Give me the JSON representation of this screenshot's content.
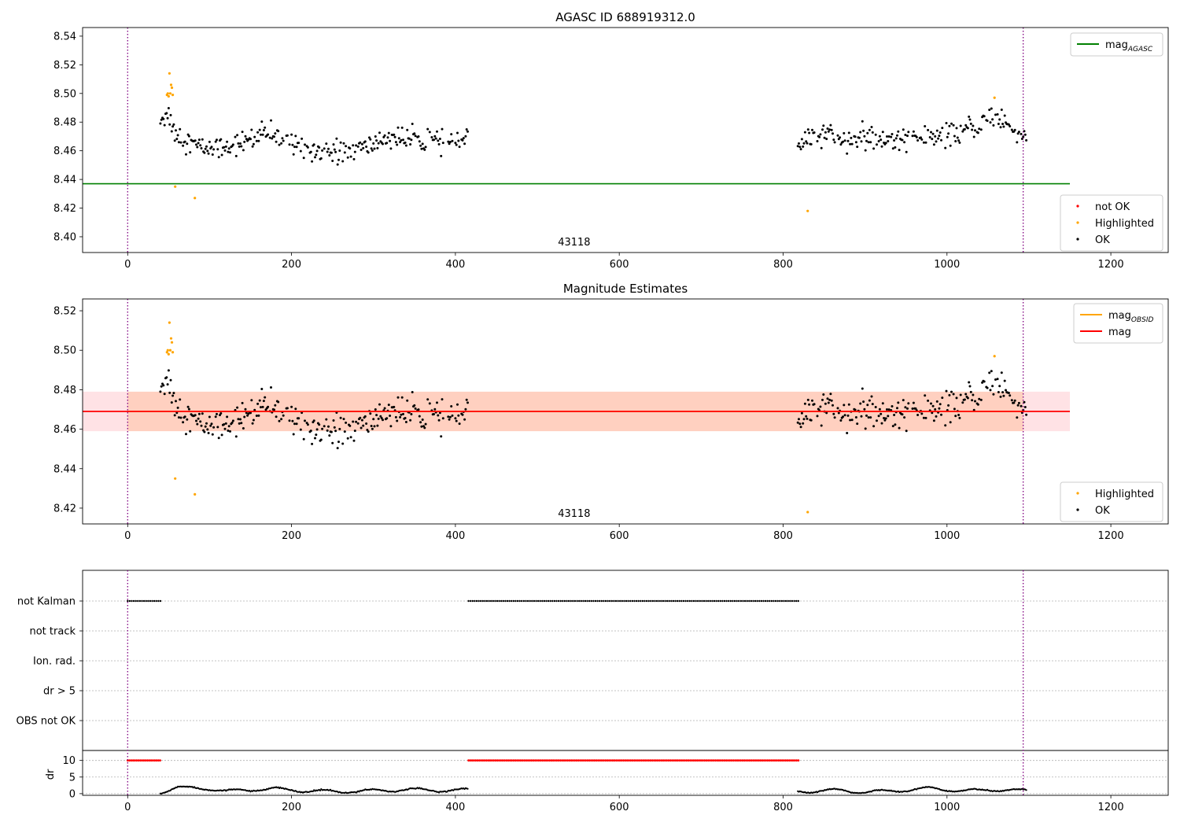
{
  "chart_data": [
    {
      "type": "scatter",
      "title": "AGASC ID 688919312.0",
      "xlim": [
        -55,
        1270
      ],
      "ylim": [
        8.389,
        8.546
      ],
      "xticks": [
        0,
        200,
        400,
        600,
        800,
        1000,
        1200
      ],
      "yticks": [
        8.4,
        8.42,
        8.44,
        8.46,
        8.48,
        8.5,
        8.52,
        8.54
      ],
      "grid": false,
      "obsid_label": "43118",
      "obsid_label_x": 545,
      "vlines": [
        0,
        1093
      ],
      "reference_line": {
        "name": "mag",
        "subscript": "AGASC",
        "y": 8.437,
        "x": [
          -55,
          1150
        ],
        "color": "#008000"
      },
      "legend_upper": {
        "placement": "top-right",
        "entries": [
          {
            "label": "mag",
            "subscript": "AGASC",
            "kind": "line",
            "color": "#008000"
          }
        ]
      },
      "legend_lower": {
        "placement": "bottom-right",
        "entries": [
          {
            "label": "not OK",
            "kind": "marker",
            "color": "#ff0000"
          },
          {
            "label": "Highlighted",
            "kind": "marker",
            "color": "#ffa500"
          },
          {
            "label": "OK",
            "kind": "marker",
            "color": "#000000"
          }
        ]
      },
      "series": [
        {
          "name": "Highlighted",
          "color": "#ffa500",
          "points": [
            [
              48,
              8.499
            ],
            [
              49,
              8.5
            ],
            [
              50,
              8.498
            ],
            [
              51,
              8.514
            ],
            [
              52,
              8.5
            ],
            [
              53,
              8.506
            ],
            [
              54,
              8.504
            ],
            [
              55,
              8.499
            ],
            [
              58,
              8.435
            ],
            [
              82,
              8.427
            ],
            [
              830,
              8.418
            ],
            [
              1058,
              8.497
            ]
          ]
        },
        {
          "name": "OK",
          "color": "#000000",
          "trend": [
            [
              40,
              8.483
            ],
            [
              50,
              8.485
            ],
            [
              58,
              8.472
            ],
            [
              70,
              8.468
            ],
            [
              90,
              8.462
            ],
            [
              110,
              8.462
            ],
            [
              140,
              8.466
            ],
            [
              170,
              8.472
            ],
            [
              200,
              8.466
            ],
            [
              230,
              8.461
            ],
            [
              260,
              8.459
            ],
            [
              290,
              8.462
            ],
            [
              320,
              8.47
            ],
            [
              350,
              8.467
            ],
            [
              380,
              8.466
            ],
            [
              410,
              8.468
            ],
            [
              820,
              8.464
            ],
            [
              850,
              8.472
            ],
            [
              880,
              8.469
            ],
            [
              920,
              8.467
            ],
            [
              960,
              8.47
            ],
            [
              1000,
              8.469
            ],
            [
              1030,
              8.476
            ],
            [
              1060,
              8.484
            ],
            [
              1090,
              8.472
            ]
          ],
          "segments": [
            [
              40,
              415
            ],
            [
              818,
              1097
            ]
          ],
          "scatter": 0.007
        },
        {
          "name": "not OK",
          "color": "#ff0000",
          "points": []
        }
      ]
    },
    {
      "type": "scatter",
      "title": "Magnitude Estimates",
      "xlim": [
        -55,
        1270
      ],
      "ylim": [
        8.412,
        8.526
      ],
      "xticks": [
        0,
        200,
        400,
        600,
        800,
        1000,
        1200
      ],
      "yticks": [
        8.42,
        8.44,
        8.46,
        8.48,
        8.5,
        8.52
      ],
      "grid": false,
      "obsid_label": "43118",
      "obsid_label_x": 545,
      "vlines": [
        0,
        1093
      ],
      "mag_line": {
        "name": "mag",
        "y": 8.469,
        "band": [
          8.459,
          8.479
        ],
        "x": [
          -55,
          1150
        ],
        "color": "#ff0000"
      },
      "obsid_line": {
        "name": "mag",
        "subscript": "OBSID",
        "y": 8.469,
        "band": [
          8.459,
          8.479
        ],
        "segments": [
          [
            0,
            1093
          ]
        ],
        "color": "#ffa500"
      },
      "legend_upper": {
        "placement": "top-right",
        "entries": [
          {
            "label": "mag",
            "subscript": "OBSID",
            "kind": "line",
            "color": "#ffa500"
          },
          {
            "label": "mag",
            "kind": "line",
            "color": "#ff0000"
          }
        ]
      },
      "legend_lower": {
        "placement": "bottom-right",
        "entries": [
          {
            "label": "Highlighted",
            "kind": "marker",
            "color": "#ffa500"
          },
          {
            "label": "OK",
            "kind": "marker",
            "color": "#000000"
          }
        ]
      }
    },
    {
      "type": "scatter",
      "title": "",
      "xlim": [
        -55,
        1270
      ],
      "ylim": [
        -0.5,
        13
      ],
      "xticks": [
        0,
        200,
        400,
        600,
        800,
        1000,
        1200
      ],
      "yticks": [
        0,
        5,
        10
      ],
      "ylabel": "dr",
      "vlines": [
        0,
        1093
      ],
      "flag_rows": [
        "not Kalman",
        "not track",
        "Ion. rad.",
        "dr > 5",
        "OBS not OK"
      ],
      "flag_series": [
        {
          "row": "not Kalman",
          "color": "#000000",
          "segments": [
            [
              0,
              40
            ],
            [
              416,
              819
            ]
          ]
        }
      ],
      "dr_threshold_series": {
        "name": "dr > 5",
        "y": 10,
        "color": "#ff0000",
        "segments": [
          [
            0,
            40
          ],
          [
            416,
            819
          ]
        ]
      },
      "dr_series": {
        "name": "dr",
        "color": "#000000",
        "segments": [
          [
            40,
            415
          ],
          [
            818,
            1097
          ]
        ],
        "trend": [
          [
            40,
            0.4
          ],
          [
            60,
            1.8
          ],
          [
            100,
            1.6
          ],
          [
            120,
            0.6
          ],
          [
            140,
            1.1
          ],
          [
            180,
            1.4
          ],
          [
            220,
            0.8
          ],
          [
            260,
            0.6
          ],
          [
            300,
            0.9
          ],
          [
            340,
            1.2
          ],
          [
            380,
            1.0
          ],
          [
            410,
            1.1
          ],
          [
            820,
            0.6
          ],
          [
            860,
            1.0
          ],
          [
            900,
            0.5
          ],
          [
            940,
            0.9
          ],
          [
            980,
            1.6
          ],
          [
            1020,
            0.8
          ],
          [
            1060,
            1.2
          ],
          [
            1095,
            0.9
          ]
        ]
      }
    }
  ]
}
